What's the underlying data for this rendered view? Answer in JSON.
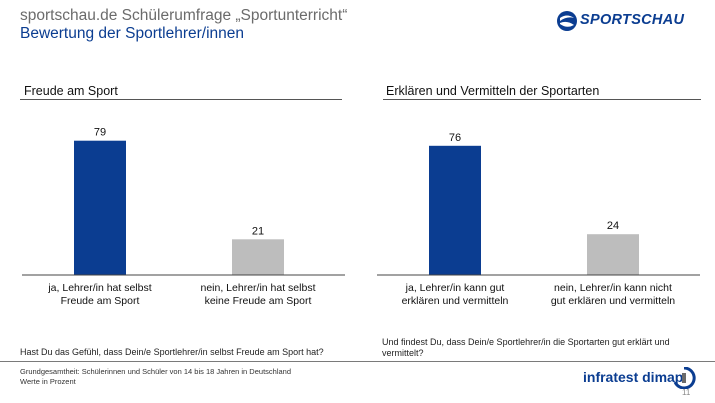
{
  "header": {
    "title": "sportschau.de Schülerumfrage „Sportunterricht“",
    "subtitle": "Bewertung der Sportlehrer/innen",
    "logo_text": "SPORTSCHAU"
  },
  "colors": {
    "primary": "#0b3d91",
    "secondary": "#bdbdbd",
    "title_gray": "#6b6b6b"
  },
  "chart_data": [
    {
      "type": "bar",
      "title": "Freude am Sport",
      "categories": [
        [
          "ja, Lehrer/in hat selbst",
          "Freude am Sport"
        ],
        [
          "nein, Lehrer/in hat selbst",
          "keine Freude am Sport"
        ]
      ],
      "values": [
        79,
        21
      ],
      "bar_colors": [
        "#0b3d91",
        "#bdbdbd"
      ],
      "ylim": [
        0,
        100
      ],
      "question": "Hast Du das Gefühl, dass Dein/e Sportlehrer/in selbst Freude am Sport hat?"
    },
    {
      "type": "bar",
      "title": "Erklären und Vermitteln der Sportarten",
      "categories": [
        [
          "ja, Lehrer/in kann gut",
          "erklären und vermitteln"
        ],
        [
          "nein, Lehrer/in kann nicht",
          "gut erklären und vermitteln"
        ]
      ],
      "values": [
        76,
        24
      ],
      "bar_colors": [
        "#0b3d91",
        "#bdbdbd"
      ],
      "ylim": [
        0,
        100
      ],
      "question": "Und findest Du, dass Dein/e Sportlehrer/in die Sportarten gut erklärt und vermittelt?"
    }
  ],
  "footer": {
    "basis": "Grundgesamtheit: Schülerinnen und Schüler von 14 bis 18 Jahren in Deutschland",
    "unit": "Werte in Prozent",
    "brand": "infratest dimap",
    "page": "11"
  }
}
